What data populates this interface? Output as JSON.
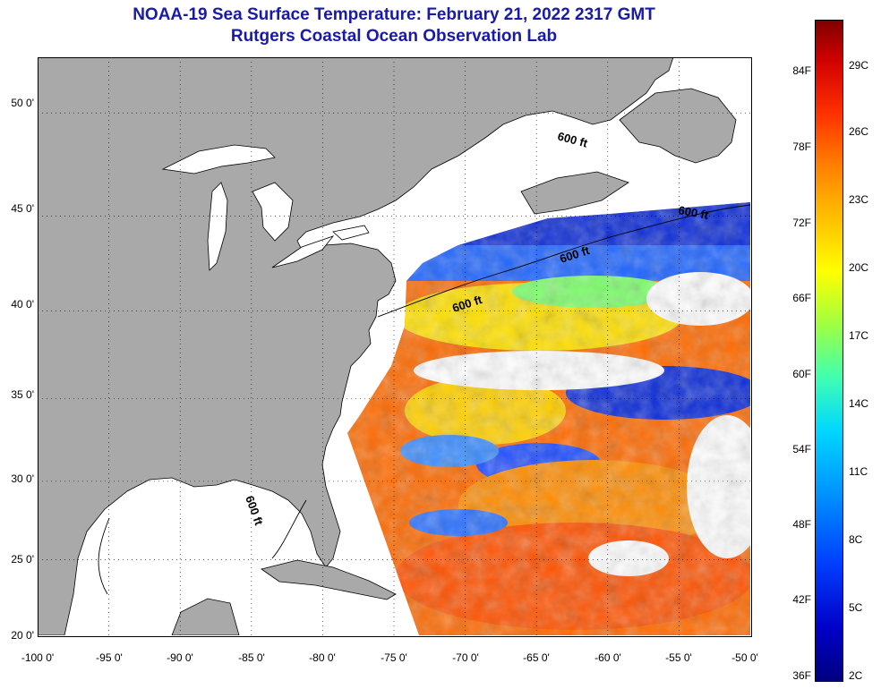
{
  "header": {
    "title": "NOAA-19 Sea Surface Temperature:  February 21, 2022 2317 GMT",
    "subtitle": "Rutgers Coastal Ocean Observation Lab"
  },
  "map": {
    "lat_ticks": [
      "50 0'",
      "45 0'",
      "40 0'",
      "35 0'",
      "30 0'",
      "25 0'",
      "20 0'"
    ],
    "lon_ticks": [
      "-100 0'",
      "-95 0'",
      "-90 0'",
      "-85 0'",
      "-80 0'",
      "-75 0'",
      "-70 0'",
      "-65 0'",
      "-60 0'",
      "-55 0'",
      "-50 0'"
    ],
    "lat_range": [
      20,
      52.5
    ],
    "lon_range": [
      -100,
      -50
    ],
    "contour_label": "600 ft",
    "colors": {
      "land": "#a9a9a9",
      "no_data": "#ffffff",
      "coast": "#000000"
    }
  },
  "colorbar": {
    "fahrenheit_labels": [
      "84F",
      "78F",
      "72F",
      "66F",
      "60F",
      "54F",
      "48F",
      "42F",
      "36F"
    ],
    "celsius_labels": [
      "29C",
      "26C",
      "23C",
      "20C",
      "17C",
      "14C",
      "11C",
      "8C",
      "5C",
      "2C"
    ]
  }
}
